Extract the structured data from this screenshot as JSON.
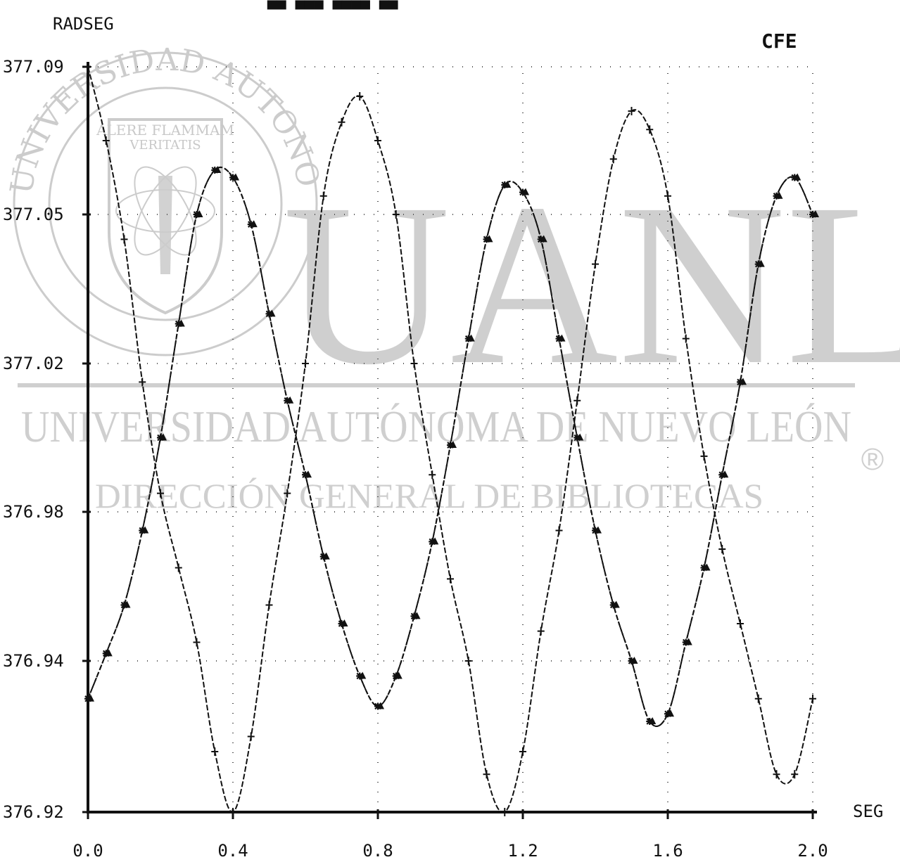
{
  "header_fragment": "▄▄ ▄▄▄ ▄▄▄▄ ▄▄",
  "colors": {
    "ink": "#111111",
    "watermark": "#cfcfcf",
    "background": "#ffffff"
  },
  "watermark": {
    "letters": "UANL",
    "line1": "UNIVERSIDAD AUTÓNOMA DE NUEVO LEÓN",
    "line2": "DIRECCIÓN GENERAL DE BIBLIOTECAS",
    "registered": "®",
    "seal_ring": "UNIVERSIDAD AUTONOMA DE NUEVO LEON",
    "seal_motto_1": "ALERE FLAMMAM",
    "seal_motto_2": "VERITATIS"
  },
  "chart_data": {
    "type": "line",
    "corner_label": "CFE",
    "ylabel": "RADSEG",
    "xlabel": "SEG",
    "xlim": [
      0.0,
      2.0
    ],
    "ylim": [
      376.92,
      377.09
    ],
    "x_ticks": [
      "0.0",
      "0.4",
      "0.8",
      "1.2",
      "1.6",
      "2.0"
    ],
    "y_ticks": [
      "376.92",
      "376.94",
      "376.98",
      "377.02",
      "377.05",
      "377.09"
    ],
    "series": [
      {
        "marker": "+",
        "x": [
          0.0,
          0.05,
          0.1,
          0.15,
          0.2,
          0.25,
          0.3,
          0.35,
          0.4,
          0.45,
          0.5,
          0.55,
          0.6,
          0.65,
          0.7,
          0.75,
          0.8,
          0.85,
          0.9,
          0.95,
          1.0,
          1.05,
          1.1,
          1.15,
          1.2,
          1.25,
          1.3,
          1.35,
          1.4,
          1.45,
          1.5,
          1.55,
          1.6,
          1.65,
          1.7,
          1.75,
          1.8,
          1.85,
          1.9,
          1.95,
          2.0
        ],
        "values": [
          377.09,
          377.07,
          377.045,
          377.015,
          376.985,
          376.965,
          376.945,
          376.928,
          376.92,
          376.93,
          376.955,
          376.985,
          377.02,
          377.055,
          377.075,
          377.082,
          377.07,
          377.05,
          377.02,
          376.99,
          376.962,
          376.94,
          376.925,
          376.92,
          376.928,
          376.948,
          376.975,
          377.01,
          377.04,
          377.065,
          377.078,
          377.073,
          377.055,
          377.025,
          376.995,
          376.97,
          376.95,
          376.935,
          376.925,
          376.925,
          376.935
        ]
      },
      {
        "marker": "*",
        "x": [
          0.0,
          0.05,
          0.1,
          0.15,
          0.2,
          0.25,
          0.3,
          0.35,
          0.4,
          0.45,
          0.5,
          0.55,
          0.6,
          0.65,
          0.7,
          0.75,
          0.8,
          0.85,
          0.9,
          0.95,
          1.0,
          1.05,
          1.1,
          1.15,
          1.2,
          1.25,
          1.3,
          1.35,
          1.4,
          1.45,
          1.5,
          1.55,
          1.6,
          1.65,
          1.7,
          1.75,
          1.8,
          1.85,
          1.9,
          1.95,
          2.0
        ],
        "values": [
          376.935,
          376.942,
          376.955,
          376.975,
          377.0,
          377.028,
          377.05,
          377.062,
          377.06,
          377.048,
          377.03,
          377.01,
          376.99,
          376.968,
          376.95,
          376.938,
          376.934,
          376.938,
          376.952,
          376.972,
          376.998,
          377.025,
          377.045,
          377.058,
          377.056,
          377.045,
          377.025,
          377.0,
          376.975,
          376.955,
          376.94,
          376.932,
          376.933,
          376.945,
          376.965,
          376.99,
          377.015,
          377.04,
          377.055,
          377.06,
          377.05
        ]
      },
      {
        "marker": "△",
        "x": [
          0.0,
          0.05,
          0.1,
          0.15,
          0.2,
          0.25,
          0.3,
          0.35,
          0.4,
          0.45,
          0.5,
          0.55,
          0.6,
          0.65,
          0.7,
          0.75,
          0.8,
          0.85,
          0.9,
          0.95,
          1.0,
          1.05,
          1.1,
          1.15,
          1.2,
          1.25,
          1.3,
          1.35,
          1.4,
          1.45,
          1.5,
          1.55,
          1.6,
          1.65,
          1.7,
          1.75,
          1.8,
          1.85,
          1.9,
          1.95,
          2.0
        ],
        "values": [
          376.935,
          376.942,
          376.955,
          376.975,
          377.0,
          377.028,
          377.05,
          377.062,
          377.06,
          377.048,
          377.03,
          377.01,
          376.99,
          376.968,
          376.95,
          376.938,
          376.934,
          376.938,
          376.952,
          376.972,
          376.998,
          377.025,
          377.045,
          377.058,
          377.056,
          377.045,
          377.025,
          377.0,
          376.975,
          376.955,
          376.94,
          376.932,
          376.933,
          376.945,
          376.965,
          376.99,
          377.015,
          377.04,
          377.055,
          377.06,
          377.05
        ]
      }
    ]
  }
}
